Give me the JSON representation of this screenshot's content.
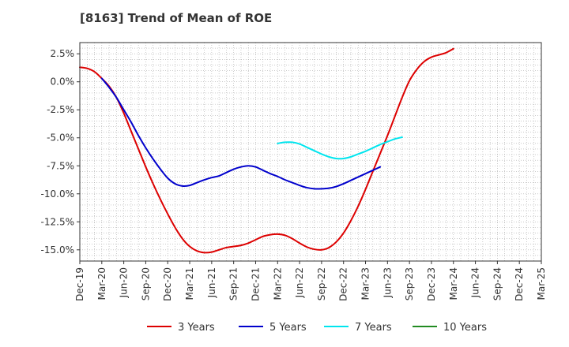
{
  "chart_data": {
    "type": "line",
    "title": "[8163]  Trend of Mean of ROE",
    "xlabel": "",
    "ylabel": "",
    "x_tick_labels": [
      "Dec-19",
      "Mar-20",
      "Jun-20",
      "Sep-20",
      "Dec-20",
      "Mar-21",
      "Jun-21",
      "Sep-21",
      "Dec-21",
      "Mar-22",
      "Jun-22",
      "Sep-22",
      "Dec-22",
      "Mar-23",
      "Jun-23",
      "Sep-23",
      "Dec-23",
      "Mar-24",
      "Jun-24",
      "Sep-24",
      "Dec-24",
      "Mar-25"
    ],
    "y_ticks": [
      2.5,
      0.0,
      -2.5,
      -5.0,
      -7.5,
      -10.0,
      -12.5,
      -15.0
    ],
    "y_tick_labels": [
      "2.5%",
      "0.0%",
      "-2.5%",
      "-5.0%",
      "-7.5%",
      "-10.0%",
      "-12.5%",
      "-15.0%"
    ],
    "ylim": [
      -16.0,
      3.5
    ],
    "grid": true,
    "legend_position": "bottom",
    "series": [
      {
        "name": "3 Years",
        "color": "#dd0000",
        "points": [
          [
            "Dec-19",
            1.3
          ],
          [
            "Jan-20",
            1.2
          ],
          [
            "Feb-20",
            0.9
          ],
          [
            "Mar-20",
            0.3
          ],
          [
            "Apr-20",
            -0.4
          ],
          [
            "May-20",
            -1.4
          ],
          [
            "Jun-20",
            -2.8
          ],
          [
            "Jul-20",
            -4.4
          ],
          [
            "Aug-20",
            -6.0
          ],
          [
            "Sep-20",
            -7.6
          ],
          [
            "Oct-20",
            -9.1
          ],
          [
            "Nov-20",
            -10.5
          ],
          [
            "Dec-20",
            -11.8
          ],
          [
            "Jan-21",
            -13.0
          ],
          [
            "Feb-21",
            -14.0
          ],
          [
            "Mar-21",
            -14.7
          ],
          [
            "Apr-21",
            -15.1
          ],
          [
            "May-21",
            -15.25
          ],
          [
            "Jun-21",
            -15.2
          ],
          [
            "Jul-21",
            -15.0
          ],
          [
            "Aug-21",
            -14.8
          ],
          [
            "Sep-21",
            -14.7
          ],
          [
            "Oct-21",
            -14.6
          ],
          [
            "Nov-21",
            -14.4
          ],
          [
            "Dec-21",
            -14.1
          ],
          [
            "Jan-22",
            -13.8
          ],
          [
            "Feb-22",
            -13.65
          ],
          [
            "Mar-22",
            -13.6
          ],
          [
            "Apr-22",
            -13.7
          ],
          [
            "May-22",
            -14.0
          ],
          [
            "Jun-22",
            -14.4
          ],
          [
            "Jul-22",
            -14.75
          ],
          [
            "Aug-22",
            -14.95
          ],
          [
            "Sep-22",
            -15.0
          ],
          [
            "Oct-22",
            -14.8
          ],
          [
            "Nov-22",
            -14.3
          ],
          [
            "Dec-22",
            -13.5
          ],
          [
            "Jan-23",
            -12.4
          ],
          [
            "Feb-23",
            -11.1
          ],
          [
            "Mar-23",
            -9.6
          ],
          [
            "Apr-23",
            -8.0
          ],
          [
            "May-23",
            -6.4
          ],
          [
            "Jun-23",
            -4.8
          ],
          [
            "Jul-23",
            -3.1
          ],
          [
            "Aug-23",
            -1.4
          ],
          [
            "Sep-23",
            0.1
          ],
          [
            "Oct-23",
            1.1
          ],
          [
            "Nov-23",
            1.8
          ],
          [
            "Dec-23",
            2.2
          ],
          [
            "Jan-24",
            2.4
          ],
          [
            "Feb-24",
            2.6
          ],
          [
            "Mar-24",
            2.95
          ]
        ]
      },
      {
        "name": "5 Years",
        "color": "#0000cc",
        "points": [
          [
            "Mar-20",
            0.3
          ],
          [
            "Apr-20",
            -0.5
          ],
          [
            "May-20",
            -1.4
          ],
          [
            "Jun-20",
            -2.5
          ],
          [
            "Jul-20",
            -3.6
          ],
          [
            "Aug-20",
            -4.8
          ],
          [
            "Sep-20",
            -5.9
          ],
          [
            "Oct-20",
            -6.9
          ],
          [
            "Nov-20",
            -7.8
          ],
          [
            "Dec-20",
            -8.6
          ],
          [
            "Jan-21",
            -9.1
          ],
          [
            "Feb-21",
            -9.3
          ],
          [
            "Mar-21",
            -9.25
          ],
          [
            "Apr-21",
            -9.0
          ],
          [
            "May-21",
            -8.75
          ],
          [
            "Jun-21",
            -8.55
          ],
          [
            "Jul-21",
            -8.4
          ],
          [
            "Aug-21",
            -8.1
          ],
          [
            "Sep-21",
            -7.8
          ],
          [
            "Oct-21",
            -7.6
          ],
          [
            "Nov-21",
            -7.5
          ],
          [
            "Dec-21",
            -7.6
          ],
          [
            "Jan-22",
            -7.9
          ],
          [
            "Feb-22",
            -8.2
          ],
          [
            "Mar-22",
            -8.45
          ],
          [
            "Apr-22",
            -8.75
          ],
          [
            "May-22",
            -9.0
          ],
          [
            "Jun-22",
            -9.25
          ],
          [
            "Jul-22",
            -9.45
          ],
          [
            "Aug-22",
            -9.55
          ],
          [
            "Sep-22",
            -9.55
          ],
          [
            "Oct-22",
            -9.5
          ],
          [
            "Nov-22",
            -9.35
          ],
          [
            "Dec-22",
            -9.1
          ],
          [
            "Jan-23",
            -8.8
          ],
          [
            "Feb-23",
            -8.5
          ],
          [
            "Mar-23",
            -8.2
          ],
          [
            "Apr-23",
            -7.9
          ],
          [
            "May-23",
            -7.6
          ]
        ]
      },
      {
        "name": "7 Years",
        "color": "#00e5ee",
        "points": [
          [
            "Mar-22",
            -5.5
          ],
          [
            "Apr-22",
            -5.4
          ],
          [
            "May-22",
            -5.4
          ],
          [
            "Jun-22",
            -5.55
          ],
          [
            "Jul-22",
            -5.85
          ],
          [
            "Aug-22",
            -6.15
          ],
          [
            "Sep-22",
            -6.45
          ],
          [
            "Oct-22",
            -6.7
          ],
          [
            "Nov-22",
            -6.85
          ],
          [
            "Dec-22",
            -6.85
          ],
          [
            "Jan-23",
            -6.7
          ],
          [
            "Feb-23",
            -6.45
          ],
          [
            "Mar-23",
            -6.2
          ],
          [
            "Apr-23",
            -5.9
          ],
          [
            "May-23",
            -5.6
          ],
          [
            "Jun-23",
            -5.35
          ],
          [
            "Jul-23",
            -5.1
          ],
          [
            "Aug-23",
            -4.95
          ]
        ]
      },
      {
        "name": "10 Years",
        "color": "#228b22",
        "points": []
      }
    ]
  }
}
